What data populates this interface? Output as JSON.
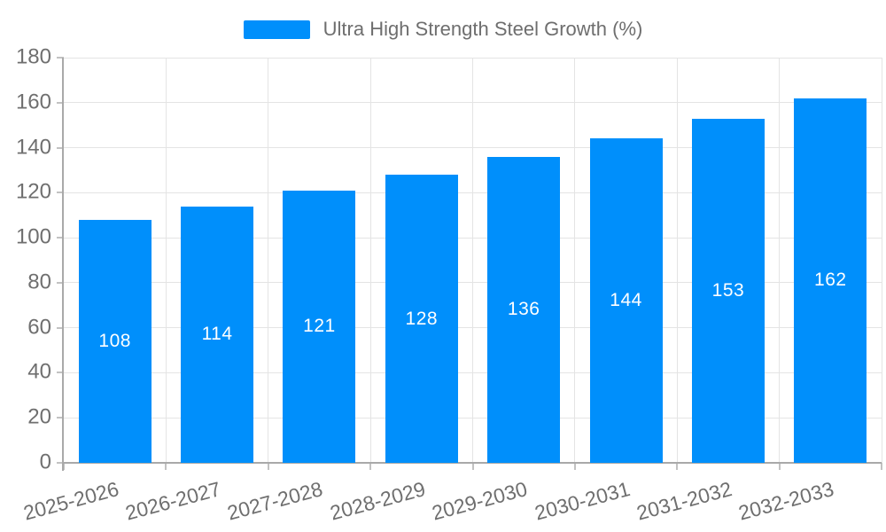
{
  "legend": {
    "label": "Ultra High Strength Steel Growth (%)"
  },
  "chart_data": {
    "type": "bar",
    "title": "",
    "categories": [
      "2025-2026",
      "2026-2027",
      "2027-2028",
      "2028-2029",
      "2029-2030",
      "2030-2031",
      "2031-2032",
      "2032-2033"
    ],
    "series": [
      {
        "name": "Ultra High Strength Steel Growth (%)",
        "values": [
          108,
          114,
          121,
          128,
          136,
          144,
          153,
          162
        ]
      }
    ],
    "xlabel": "",
    "ylabel": "",
    "ylim": [
      0,
      180
    ],
    "ytick_step": 20,
    "grid": "horizontal-and-vertical",
    "legend_position": "top-center",
    "value_label_position": "inside-middle",
    "x_label_rotation_deg": -15
  },
  "colors": {
    "background": "#ffffff",
    "bar": "#008FFB",
    "gridline": "#e4e4e4",
    "axis_line": "#a9a9a9",
    "tick": "#c2c2c2",
    "axis_label_text": "#6f6f6f",
    "legend_text": "#6e6e6e",
    "bar_value_text": "#ffffff"
  }
}
